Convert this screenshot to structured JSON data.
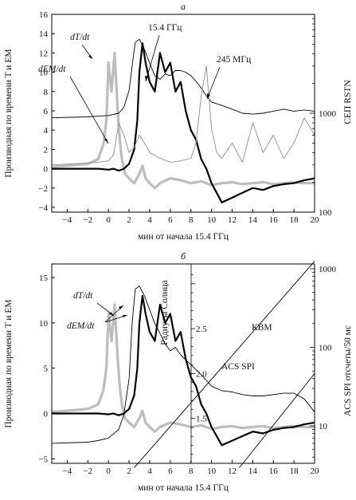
{
  "chart_data": [
    {
      "type": "line",
      "panel_label": "а",
      "xlabel": "мин от начала 15.4 ГГц",
      "ylabel": "Производная по времени T и EM",
      "ylabel_right": "СЕП RSTN",
      "xlim": [
        -5.5,
        20
      ],
      "ylim": [
        -4.5,
        16
      ],
      "x_ticks": [
        -4,
        -2,
        0,
        2,
        4,
        6,
        8,
        10,
        12,
        14,
        16,
        18,
        20
      ],
      "y_ticks": [
        -4,
        -2,
        0,
        2,
        4,
        6,
        8,
        10,
        12,
        14,
        16
      ],
      "y2_scale": "log",
      "y2_ticks": [
        100,
        1000
      ],
      "y2_range": [
        100,
        10000
      ],
      "annotations": [
        "dT/dt",
        "dEM/dt",
        "15.4 ГГц",
        "245 МГц"
      ],
      "series": [
        {
          "key": "dT",
          "color": "#bdbdbd",
          "width": 3.2,
          "axis": "left",
          "x": [
            -5.5,
            -4,
            -2,
            -1,
            -0.5,
            -0.2,
            0,
            0.3,
            0.6,
            0.9,
            1.1,
            1.3,
            1.6,
            2,
            2.5,
            3,
            3.3,
            3.6,
            4,
            4.5,
            5,
            6,
            7,
            8,
            9,
            10,
            11,
            12,
            13,
            14,
            15,
            16,
            17,
            18,
            19,
            20
          ],
          "y": [
            0.2,
            0.3,
            0.5,
            1,
            2.5,
            5,
            11,
            8,
            12,
            6,
            3,
            1,
            -0.5,
            -1,
            -1.5,
            -0.5,
            0.3,
            -1,
            -1.5,
            -2,
            -1.5,
            -1,
            -1.2,
            -1.5,
            -1.3,
            -1.7,
            -1.5,
            -1.4,
            -1.6,
            -1.5,
            -1.4,
            -1.6,
            -1.5,
            -1.4,
            -1.5,
            -1.5
          ]
        },
        {
          "key": "dEM",
          "color": "#000000",
          "width": 2.2,
          "axis": "left",
          "x": [
            -5.5,
            -4,
            -2,
            -1,
            0,
            0.5,
            1,
            1.5,
            2,
            2.5,
            2.8,
            3,
            3.3,
            3.6,
            4,
            4.5,
            5,
            5.5,
            6,
            6.5,
            7,
            7.5,
            8,
            8.5,
            9,
            9.5,
            10,
            10.5,
            11,
            12,
            13,
            14,
            15,
            16,
            17,
            18,
            19,
            20
          ],
          "y": [
            0,
            0,
            0,
            0,
            -0.1,
            0,
            -0.2,
            0,
            0.5,
            2,
            5,
            10,
            13,
            11,
            9,
            8,
            12,
            10,
            11,
            8,
            9,
            6,
            4,
            3,
            1,
            0,
            -1.5,
            -2.5,
            -3.5,
            -3,
            -2.5,
            -2,
            -2.2,
            -1.8,
            -1.6,
            -1.5,
            -1.2,
            -1
          ]
        },
        {
          "key": "s154",
          "color": "#000000",
          "width": 0.9,
          "axis": "right",
          "label": "15.4 ГГц",
          "x": [
            -5.5,
            -2,
            0,
            1,
            1.5,
            2,
            2.3,
            2.6,
            3,
            3.5,
            4,
            4.5,
            5,
            5.5,
            6,
            6.5,
            7,
            7.5,
            8,
            8.5,
            9,
            9.5,
            10,
            11,
            12,
            13,
            14,
            15,
            16,
            17,
            18,
            19,
            20
          ],
          "y": [
            900,
            920,
            950,
            1000,
            1150,
            1700,
            3000,
            5200,
            5600,
            4400,
            3200,
            2400,
            2200,
            2500,
            2400,
            2700,
            2700,
            2600,
            2400,
            2100,
            1800,
            1500,
            1300,
            1200,
            1100,
            1000,
            980,
            1000,
            1050,
            1100,
            1050,
            1080,
            1050
          ]
        },
        {
          "key": "s245",
          "color": "#8c8c8c",
          "width": 0.9,
          "axis": "right",
          "label": "245 МГц",
          "x": [
            -5.5,
            -3,
            -1,
            0,
            0.5,
            1,
            1.5,
            2,
            2.5,
            3,
            3.5,
            4,
            5,
            6,
            7,
            8,
            8.5,
            9,
            9.5,
            10,
            10.5,
            11,
            12,
            13,
            14,
            15,
            16,
            17,
            18,
            19,
            20
          ],
          "y": [
            300,
            310,
            320,
            330,
            380,
            800,
            600,
            400,
            450,
            600,
            500,
            400,
            350,
            320,
            330,
            350,
            500,
            1500,
            3000,
            700,
            400,
            350,
            500,
            320,
            800,
            400,
            600,
            350,
            500,
            900,
            600
          ]
        }
      ]
    },
    {
      "type": "line",
      "panel_label": "б",
      "xlabel": "мин от начала 15.4 ГГц",
      "ylabel": "Производная по времени T и EM",
      "ylabel_mid": "Радиусы Солнца",
      "ylabel_right": "ACS SPI отсчеты/50 мс",
      "xlim": [
        -5.5,
        20
      ],
      "ylim": [
        -5.5,
        16.5
      ],
      "x_ticks": [
        -4,
        -2,
        0,
        2,
        4,
        6,
        8,
        10,
        12,
        14,
        16,
        18,
        20
      ],
      "y_ticks": [
        -5,
        0,
        5,
        10,
        15
      ],
      "mid_ticks": [
        1.5,
        2.0,
        2.5
      ],
      "y2_scale": "log",
      "y2_ticks": [
        10,
        100,
        1000
      ],
      "annotations": [
        "dT/dt",
        "dEM/dt",
        "КВМ",
        "ACS SPI"
      ],
      "series": [
        {
          "key": "dT",
          "color": "#bdbdbd",
          "width": 3.2,
          "axis": "left",
          "x": [
            -5.5,
            -4,
            -2,
            -1,
            -0.5,
            -0.2,
            0,
            0.3,
            0.6,
            0.9,
            1.1,
            1.3,
            1.6,
            2,
            2.5,
            3,
            3.3,
            3.6,
            4,
            4.5,
            5,
            6,
            7,
            8,
            9,
            10,
            11,
            12,
            13,
            14,
            15,
            16,
            17,
            18,
            19,
            20
          ],
          "y": [
            0.2,
            0.3,
            0.5,
            1,
            2.5,
            5,
            11,
            8,
            12,
            6,
            3,
            1,
            -0.5,
            -1,
            -1.5,
            -0.5,
            0.3,
            -1,
            -1.5,
            -2,
            -1.5,
            -1,
            -1.2,
            -1.5,
            -1.3,
            -1.7,
            -1.5,
            -1.4,
            -1.6,
            -1.5,
            -1.4,
            -1.6,
            -1.5,
            -1.4,
            -1.5,
            -1.5
          ]
        },
        {
          "key": "dEM",
          "color": "#000000",
          "width": 2.2,
          "axis": "left",
          "x": [
            -5.5,
            -4,
            -2,
            -1,
            0,
            0.5,
            1,
            1.5,
            2,
            2.5,
            2.8,
            3,
            3.3,
            3.6,
            4,
            4.5,
            5,
            5.5,
            6,
            6.5,
            7,
            7.5,
            8,
            8.5,
            9,
            9.5,
            10,
            10.5,
            11,
            12,
            13,
            14,
            15,
            16,
            17,
            18,
            19,
            20
          ],
          "y": [
            0,
            0,
            0,
            0,
            -0.1,
            0,
            -0.2,
            0,
            0.5,
            2,
            5,
            10,
            13,
            11,
            9,
            8,
            12,
            10,
            11,
            8,
            9,
            6,
            4,
            3,
            1,
            0,
            -1.5,
            -2.5,
            -3.5,
            -3,
            -2.5,
            -2,
            -2.2,
            -1.8,
            -1.6,
            -1.5,
            -1.2,
            -1
          ]
        },
        {
          "key": "acs",
          "color": "#000000",
          "width": 0.9,
          "axis": "right",
          "label": "ACS SPI",
          "x": [
            -5.5,
            -2,
            -1,
            0,
            1,
            1.5,
            2,
            2.3,
            2.6,
            3,
            3.5,
            4,
            4.5,
            5,
            5.5,
            6,
            6.5,
            7,
            8,
            9,
            10,
            11,
            12,
            13,
            14,
            15,
            16,
            17,
            18,
            19,
            20
          ],
          "y": [
            6,
            6.2,
            6.5,
            7,
            9,
            14,
            40,
            200,
            550,
            600,
            450,
            300,
            200,
            150,
            110,
            90,
            100,
            80,
            60,
            45,
            32,
            28,
            27,
            25,
            24,
            24,
            25,
            26,
            26,
            22,
            15
          ]
        },
        {
          "key": "kvm1",
          "color": "#000000",
          "width": 0.9,
          "axis": "mid",
          "label": "КВМ",
          "x": [
            2.5,
            20
          ],
          "y": [
            0.95,
            3.25
          ]
        },
        {
          "key": "kvm2",
          "color": "#000000",
          "width": 0.9,
          "axis": "mid",
          "x": [
            12.7,
            20
          ],
          "y": [
            0.95,
            2.0
          ]
        }
      ]
    }
  ]
}
